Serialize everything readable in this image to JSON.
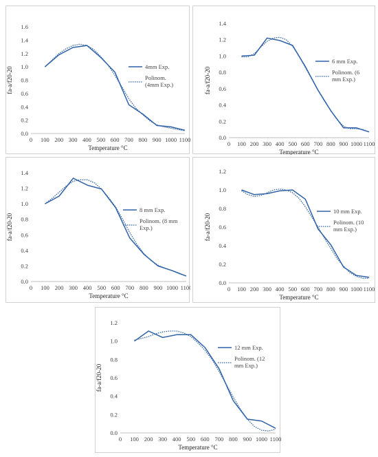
{
  "colors": {
    "series": "#2f62a8",
    "axis": "#bfbfbf",
    "text": "#404040"
  },
  "chart_data": [
    {
      "type": "line",
      "xlabel": "Temperature °C",
      "ylabel": "fa-a/f20-20",
      "xlim": [
        0,
        1100
      ],
      "ylim": [
        0,
        1.6
      ],
      "xticks": [
        0,
        100,
        200,
        300,
        400,
        500,
        600,
        700,
        800,
        900,
        1000,
        1100
      ],
      "yticks": [
        0,
        0.2,
        0.4,
        0.6,
        0.8,
        1.0,
        1.2,
        1.4,
        1.6
      ],
      "legend_position": "right",
      "series": [
        {
          "name": "4mm Exp.",
          "style": "solid",
          "x": [
            100,
            200,
            300,
            400,
            500,
            600,
            700,
            800,
            900,
            1000,
            1100
          ],
          "y": [
            1.0,
            1.18,
            1.29,
            1.32,
            1.14,
            0.92,
            0.43,
            0.29,
            0.12,
            0.1,
            0.05
          ]
        },
        {
          "name": "Polinom. (4mm Exp.)",
          "style": "dotted",
          "x": [
            100,
            150,
            200,
            250,
            300,
            350,
            400,
            450,
            500,
            550,
            600,
            650,
            700,
            750,
            800,
            850,
            900,
            950,
            1000,
            1050,
            1100
          ],
          "y": [
            1.0,
            1.1,
            1.2,
            1.27,
            1.32,
            1.34,
            1.32,
            1.26,
            1.15,
            1.03,
            0.87,
            0.7,
            0.52,
            0.38,
            0.28,
            0.19,
            0.13,
            0.1,
            0.08,
            0.06,
            0.04
          ]
        }
      ]
    },
    {
      "type": "line",
      "xlabel": "Temperature °C",
      "ylabel": "fa-a/f20-20",
      "xlim": [
        0,
        1100
      ],
      "ylim": [
        0,
        1.4
      ],
      "xticks": [
        0,
        100,
        200,
        300,
        400,
        500,
        600,
        700,
        800,
        900,
        1000,
        1100
      ],
      "yticks": [
        0,
        0.2,
        0.4,
        0.6,
        0.8,
        1.0,
        1.2,
        1.4
      ],
      "legend_position": "right",
      "series": [
        {
          "name": "6 mm Exp.",
          "style": "solid",
          "x": [
            100,
            200,
            300,
            400,
            500,
            600,
            700,
            800,
            900,
            1000,
            1100
          ],
          "y": [
            1.0,
            1.01,
            1.22,
            1.19,
            1.13,
            0.87,
            0.58,
            0.33,
            0.12,
            0.12,
            0.07
          ]
        },
        {
          "name": "Polinom. (6 mm Exp.)",
          "style": "dotted",
          "x": [
            100,
            150,
            200,
            250,
            300,
            350,
            400,
            450,
            500,
            550,
            600,
            650,
            700,
            750,
            800,
            850,
            900,
            950,
            1000,
            1050,
            1100
          ],
          "y": [
            0.99,
            0.99,
            1.03,
            1.11,
            1.18,
            1.22,
            1.23,
            1.2,
            1.12,
            1.0,
            0.86,
            0.72,
            0.58,
            0.45,
            0.33,
            0.22,
            0.14,
            0.11,
            0.11,
            0.1,
            0.07
          ]
        }
      ]
    },
    {
      "type": "line",
      "xlabel": "Temperature °C",
      "ylabel": "fa-a/f20-20",
      "xlim": [
        0,
        1100
      ],
      "ylim": [
        0,
        1.4
      ],
      "xticks": [
        0,
        100,
        200,
        300,
        400,
        500,
        600,
        700,
        800,
        900,
        1000,
        1100
      ],
      "yticks": [
        0,
        0.2,
        0.4,
        0.6,
        0.8,
        1.0,
        1.2,
        1.4
      ],
      "legend_position": "right",
      "series": [
        {
          "name": "8 mm Exp.",
          "style": "solid",
          "x": [
            100,
            200,
            300,
            400,
            500,
            600,
            700,
            800,
            900,
            1000,
            1100
          ],
          "y": [
            1.0,
            1.1,
            1.33,
            1.24,
            1.19,
            0.95,
            0.56,
            0.35,
            0.2,
            0.14,
            0.07
          ]
        },
        {
          "name": "Polinom. (8 mm Exp.)",
          "style": "dotted",
          "x": [
            100,
            150,
            200,
            250,
            300,
            350,
            400,
            450,
            500,
            550,
            600,
            650,
            700,
            750,
            800,
            850,
            900,
            950,
            1000,
            1050,
            1100
          ],
          "y": [
            1.0,
            1.07,
            1.15,
            1.23,
            1.29,
            1.31,
            1.31,
            1.27,
            1.19,
            1.08,
            0.96,
            0.8,
            0.63,
            0.48,
            0.36,
            0.27,
            0.21,
            0.17,
            0.14,
            0.1,
            0.07
          ]
        }
      ]
    },
    {
      "type": "line",
      "xlabel": "Temperature °C",
      "ylabel": "fa-a/f20-20",
      "xlim": [
        0,
        1100
      ],
      "ylim": [
        0,
        1.2
      ],
      "xticks": [
        0,
        100,
        200,
        300,
        400,
        500,
        600,
        700,
        800,
        900,
        1000,
        1100
      ],
      "yticks": [
        0,
        0.2,
        0.4,
        0.6,
        0.8,
        1.0,
        1.2
      ],
      "legend_position": "right",
      "series": [
        {
          "name": "10 mm Exp.",
          "style": "solid",
          "x": [
            100,
            200,
            300,
            400,
            500,
            600,
            700,
            800,
            900,
            1000,
            1100
          ],
          "y": [
            1.0,
            0.95,
            0.96,
            0.99,
            1.0,
            0.9,
            0.58,
            0.41,
            0.17,
            0.08,
            0.06
          ]
        },
        {
          "name": "Polinom. (10 mm Exp.)",
          "style": "dotted",
          "x": [
            100,
            150,
            200,
            250,
            300,
            350,
            400,
            450,
            500,
            550,
            600,
            650,
            700,
            750,
            800,
            850,
            900,
            950,
            1000,
            1050,
            1100
          ],
          "y": [
            0.99,
            0.95,
            0.93,
            0.94,
            0.97,
            1.0,
            1.01,
            1.0,
            0.97,
            0.91,
            0.82,
            0.71,
            0.6,
            0.48,
            0.37,
            0.26,
            0.18,
            0.11,
            0.07,
            0.05,
            0.05
          ]
        }
      ]
    },
    {
      "type": "line",
      "xlabel": "Temperature °C",
      "ylabel": "fa-a/f20-20",
      "xlim": [
        0,
        1100
      ],
      "ylim": [
        0,
        1.2
      ],
      "xticks": [
        0,
        100,
        200,
        300,
        400,
        500,
        600,
        700,
        800,
        900,
        1000,
        1100
      ],
      "yticks": [
        0,
        0.2,
        0.4,
        0.6,
        0.8,
        1.0,
        1.2
      ],
      "legend_position": "right",
      "series": [
        {
          "name": "12 mm Exp.",
          "style": "solid",
          "x": [
            100,
            200,
            300,
            400,
            500,
            600,
            700,
            800,
            900,
            1000,
            1100
          ],
          "y": [
            1.0,
            1.11,
            1.04,
            1.07,
            1.07,
            0.93,
            0.7,
            0.35,
            0.15,
            0.13,
            0.05
          ]
        },
        {
          "name": "Polinom. (12 mm Exp.)",
          "style": "dotted",
          "x": [
            100,
            150,
            200,
            250,
            300,
            350,
            400,
            450,
            500,
            550,
            600,
            650,
            700,
            750,
            800,
            850,
            900,
            950,
            1000,
            1050,
            1100
          ],
          "y": [
            1.01,
            1.03,
            1.05,
            1.08,
            1.1,
            1.11,
            1.11,
            1.09,
            1.05,
            0.98,
            0.9,
            0.8,
            0.67,
            0.53,
            0.39,
            0.26,
            0.15,
            0.07,
            0.03,
            0.02,
            0.04
          ]
        }
      ]
    }
  ]
}
